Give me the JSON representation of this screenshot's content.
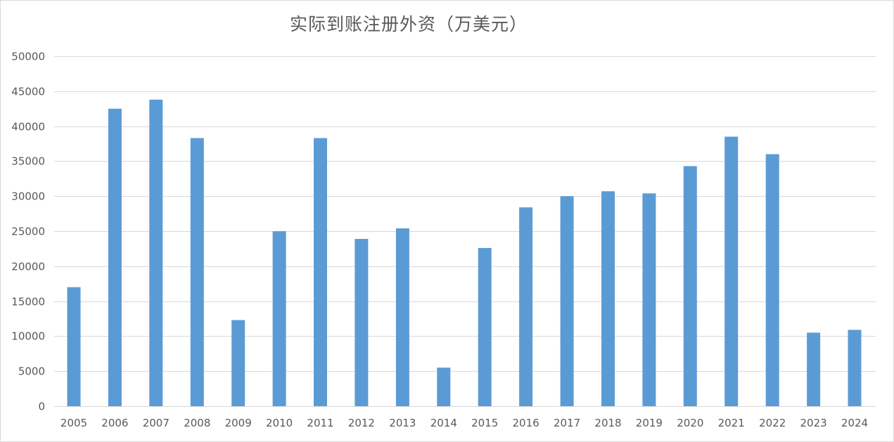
{
  "chart_data": {
    "type": "bar",
    "title": "实际到账注册外资（万美元）",
    "categories": [
      "2005",
      "2006",
      "2007",
      "2008",
      "2009",
      "2010",
      "2011",
      "2012",
      "2013",
      "2014",
      "2015",
      "2016",
      "2017",
      "2018",
      "2019",
      "2020",
      "2021",
      "2022",
      "2023",
      "2024"
    ],
    "series": [
      {
        "values": [
          17000,
          42500,
          43800,
          38300,
          12300,
          25000,
          38300,
          23900,
          25400,
          5500,
          22600,
          28400,
          30000,
          30700,
          30400,
          34300,
          38500,
          36000,
          10500,
          10900
        ]
      }
    ],
    "ylim": [
      0,
      50000
    ],
    "yticks": [
      0,
      5000,
      10000,
      15000,
      20000,
      25000,
      30000,
      35000,
      40000,
      45000,
      50000
    ],
    "grid": true,
    "legend": "none",
    "bar_color": "#5b9bd5",
    "grid_color": "#d9d9d9"
  }
}
